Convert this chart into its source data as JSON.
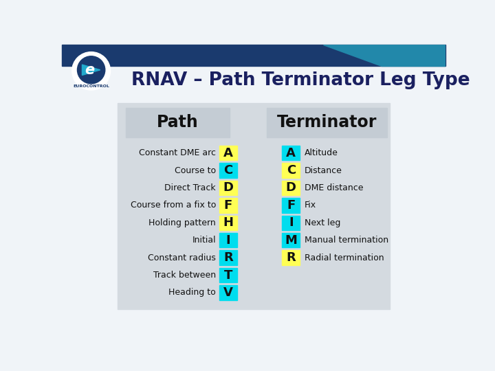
{
  "title": "RNAV – Path Terminator Leg Type",
  "slide_bg": "#f0f4f8",
  "path_header": "Path",
  "term_header": "Terminator",
  "path_items": [
    {
      "label": "Constant DME arc",
      "letter": "A",
      "color": "#ffff55"
    },
    {
      "label": "Course to",
      "letter": "C",
      "color": "#00ddee"
    },
    {
      "label": "Direct Track",
      "letter": "D",
      "color": "#ffff55"
    },
    {
      "label": "Course from a fix to",
      "letter": "F",
      "color": "#ffff55"
    },
    {
      "label": "Holding pattern",
      "letter": "H",
      "color": "#ffff55"
    },
    {
      "label": "Initial",
      "letter": "I",
      "color": "#00ddee"
    },
    {
      "label": "Constant radius",
      "letter": "R",
      "color": "#00ddee"
    },
    {
      "label": "Track between",
      "letter": "T",
      "color": "#00ddee"
    },
    {
      "label": "Heading to",
      "letter": "V",
      "color": "#00ddee"
    }
  ],
  "term_items": [
    {
      "label": "Altitude",
      "letter": "A",
      "color": "#00ddee"
    },
    {
      "label": "Distance",
      "letter": "C",
      "color": "#ffff55"
    },
    {
      "label": "DME distance",
      "letter": "D",
      "color": "#ffff55"
    },
    {
      "label": "Fix",
      "letter": "F",
      "color": "#00ddee"
    },
    {
      "label": "Next leg",
      "letter": "I",
      "color": "#00ddee"
    },
    {
      "label": "Manual termination",
      "letter": "M",
      "color": "#00ddee"
    },
    {
      "label": "Radial termination",
      "letter": "R",
      "color": "#ffff55"
    }
  ],
  "top_bar_color": "#1a3a6e",
  "top_stripe_color": "#2288aa",
  "title_color": "#1a2060",
  "section_bg": "#d4dae0",
  "header_box_bg": "#c4ccd4"
}
